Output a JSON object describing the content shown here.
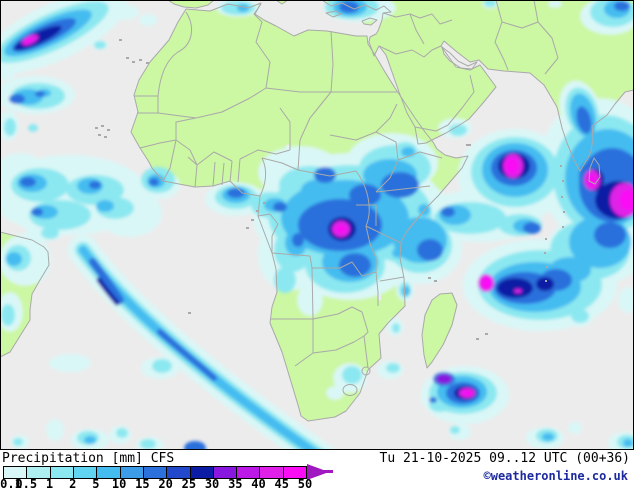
{
  "title": {
    "full": "Precipitation [mm] CFS",
    "parameter": "Precipitation",
    "unit": "[mm]",
    "model": "CFS"
  },
  "datetime": "Tu 21-10-2025 09..12 UTC (00+36)",
  "copyright": "©weatheronline.co.uk",
  "legend": {
    "labels": [
      "0.1",
      "0.5",
      "1",
      "2",
      "5",
      "10",
      "15",
      "20",
      "25",
      "30",
      "35",
      "40",
      "45",
      "50"
    ],
    "colors": [
      "#daf7f7",
      "#aeeff1",
      "#8ce8f0",
      "#60d4f0",
      "#44bcf0",
      "#3c9ce8",
      "#2c70dc",
      "#2248cc",
      "#0c1ca4",
      "#8818e0",
      "#bc18e8",
      "#e020e8",
      "#fa0cf4"
    ],
    "overflow_arrow_color": "#a018c0"
  },
  "map_colors": {
    "ocean": "#ececec",
    "land": "#ccf7a3",
    "border": "#a9a9a9",
    "frame": "#000000",
    "precip_levels": [
      "#daf7f7",
      "#8ce8f0",
      "#44bcf0",
      "#2c70dc",
      "#0c1ca4",
      "#8818e0",
      "#e020e8",
      "#fa0cf4"
    ]
  }
}
